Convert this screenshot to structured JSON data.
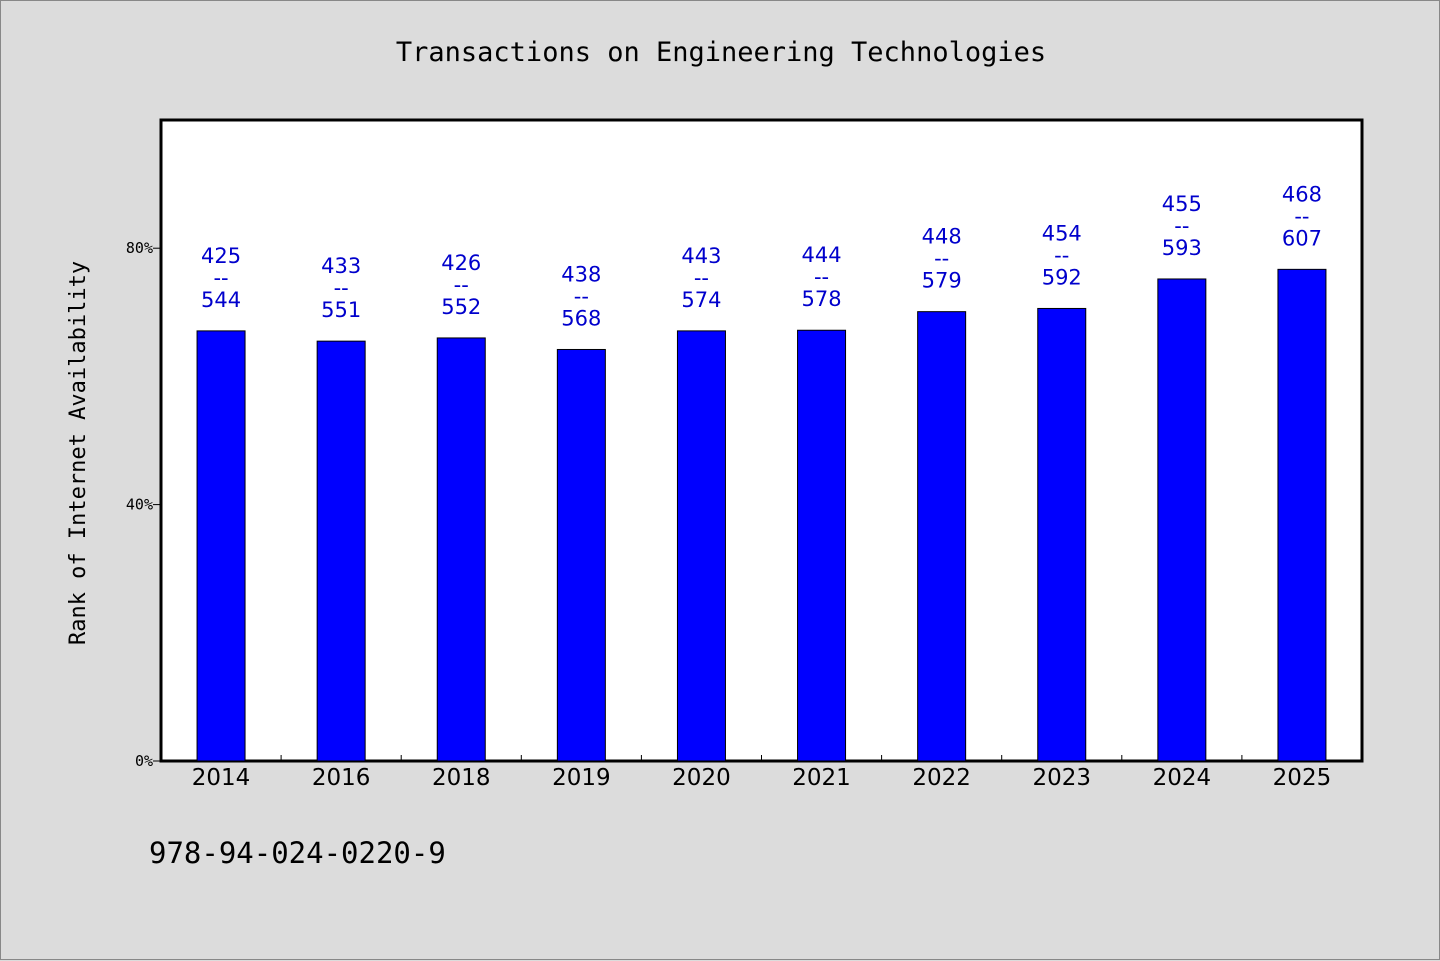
{
  "chart_data": {
    "type": "bar",
    "title": "Transactions on Engineering Technologies",
    "ylabel": "Rank of Internet Availability",
    "xlabel": "",
    "ylim": [
      0,
      100
    ],
    "yticks": [
      {
        "value": 0,
        "label": "0%"
      },
      {
        "value": 40,
        "label": "40%"
      },
      {
        "value": 80,
        "label": "80%"
      }
    ],
    "categories": [
      "2014",
      "2016",
      "2018",
      "2019",
      "2020",
      "2021",
      "2022",
      "2023",
      "2024",
      "2025"
    ],
    "values": [
      67.1,
      65.5,
      66.0,
      64.2,
      67.1,
      67.2,
      70.1,
      70.6,
      75.2,
      76.7
    ],
    "labels": [
      {
        "top": "425",
        "sep": "--",
        "bottom": "544"
      },
      {
        "top": "433",
        "sep": "--",
        "bottom": "551"
      },
      {
        "top": "426",
        "sep": "--",
        "bottom": "552"
      },
      {
        "top": "438",
        "sep": "--",
        "bottom": "568"
      },
      {
        "top": "443",
        "sep": "--",
        "bottom": "574"
      },
      {
        "top": "444",
        "sep": "--",
        "bottom": "578"
      },
      {
        "top": "448",
        "sep": "--",
        "bottom": "579"
      },
      {
        "top": "454",
        "sep": "--",
        "bottom": "592"
      },
      {
        "top": "455",
        "sep": "--",
        "bottom": "593"
      },
      {
        "top": "468",
        "sep": "--",
        "bottom": "607"
      }
    ],
    "bar_color": "#0000ff",
    "label_color": "#0000cc",
    "grid": false
  },
  "footer": {
    "isbn": "978-94-024-0220-9"
  }
}
